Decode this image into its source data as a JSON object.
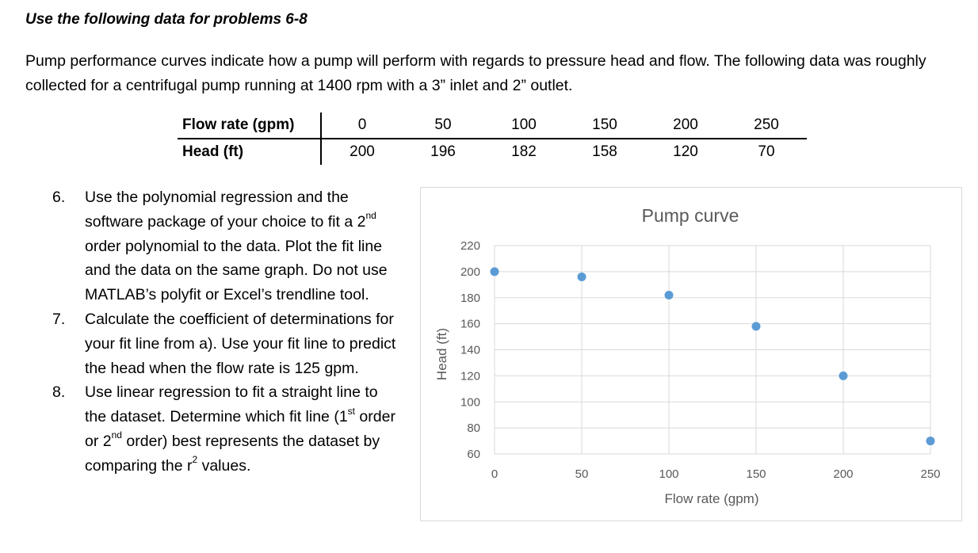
{
  "heading": "Use the following data for problems 6-8",
  "intro": "Pump performance curves indicate how a pump will perform with regards to pressure head and flow.  The following data was roughly collected for a centrifugal pump running at 1400 rpm with a 3” inlet and 2” outlet.",
  "table": {
    "flow_label": "Flow rate (gpm)",
    "head_label": "Head (ft)",
    "flow": [
      "0",
      "50",
      "100",
      "150",
      "200",
      "250"
    ],
    "head": [
      "200",
      "196",
      "182",
      "158",
      "120",
      "70"
    ]
  },
  "problems": [
    {
      "num": "6.",
      "parts": [
        "Use the polynomial regression and the software package of your choice to fit a 2",
        "nd",
        " order polynomial to the data.  Plot the fit line and the data on the same graph.  Do not use MATLAB’s polyfit or Excel’s trendline tool."
      ]
    },
    {
      "num": "7.",
      "parts": [
        "Calculate the coefficient of determinations for your fit line from a).  Use your fit line to predict the head when the flow rate is 125 gpm."
      ]
    },
    {
      "num": "8.",
      "parts": [
        "Use linear regression to fit a straight line to the dataset.  Determine which fit line (1",
        "st",
        " order or 2",
        "nd",
        " order) best represents the dataset by comparing the r",
        "2",
        " values."
      ]
    }
  ],
  "colors": {
    "marker": "#5b9bd5",
    "grid": "#d9d9d9",
    "axis_text": "#595959"
  },
  "chart_data": {
    "type": "scatter",
    "title": "Pump curve",
    "xlabel": "Flow rate (gpm)",
    "ylabel": "Head (ft)",
    "xlim": [
      0,
      250
    ],
    "ylim": [
      60,
      220
    ],
    "x_ticks": [
      0,
      50,
      100,
      150,
      200,
      250
    ],
    "y_ticks": [
      60,
      80,
      100,
      120,
      140,
      160,
      180,
      200,
      220
    ],
    "grid": true,
    "series": [
      {
        "x": [
          0,
          50,
          100,
          150,
          200,
          250
        ],
        "y": [
          200,
          196,
          182,
          158,
          120,
          70
        ]
      }
    ]
  }
}
